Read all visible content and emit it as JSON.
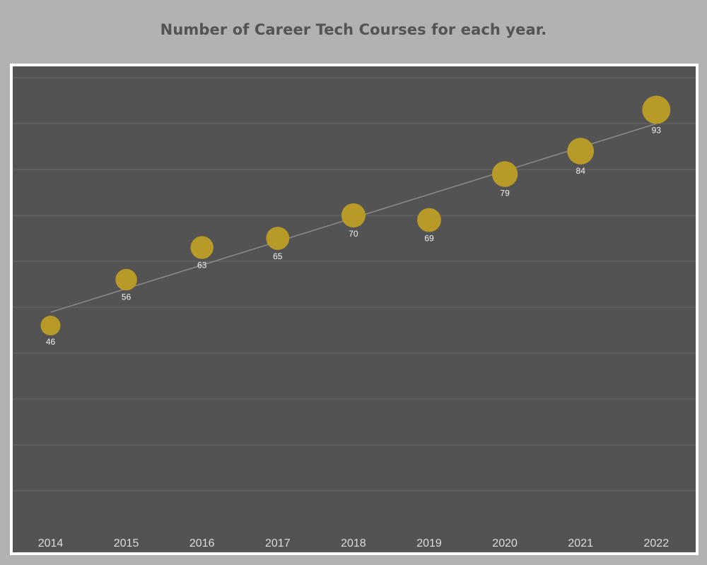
{
  "title": "Number of Career Tech Courses for each year.",
  "colors": {
    "page_background": "#b2b2b2",
    "plot_background": "#535353",
    "frame": "#ffffff",
    "marker": "#b89a28",
    "trend_line": "#8c8c8c",
    "gridline": "#6a6a6a",
    "title_text": "#545454",
    "label_text": "#f2f2f2"
  },
  "chart_data": {
    "type": "scatter",
    "title": "Number of Career Tech Courses for each year.",
    "xlabel": "",
    "ylabel": "",
    "categories": [
      "2014",
      "2015",
      "2016",
      "2017",
      "2018",
      "2019",
      "2020",
      "2021",
      "2022"
    ],
    "values": [
      46,
      56,
      63,
      65,
      70,
      69,
      79,
      84,
      93
    ],
    "data_labels": [
      "46",
      "56",
      "63",
      "65",
      "70",
      "69",
      "79",
      "84",
      "93"
    ],
    "marker_size_encodes_value": true,
    "trend_line": true,
    "ylim": [
      0,
      100
    ],
    "y_axis_labels_visible": false,
    "grid": true,
    "legend": "none"
  }
}
